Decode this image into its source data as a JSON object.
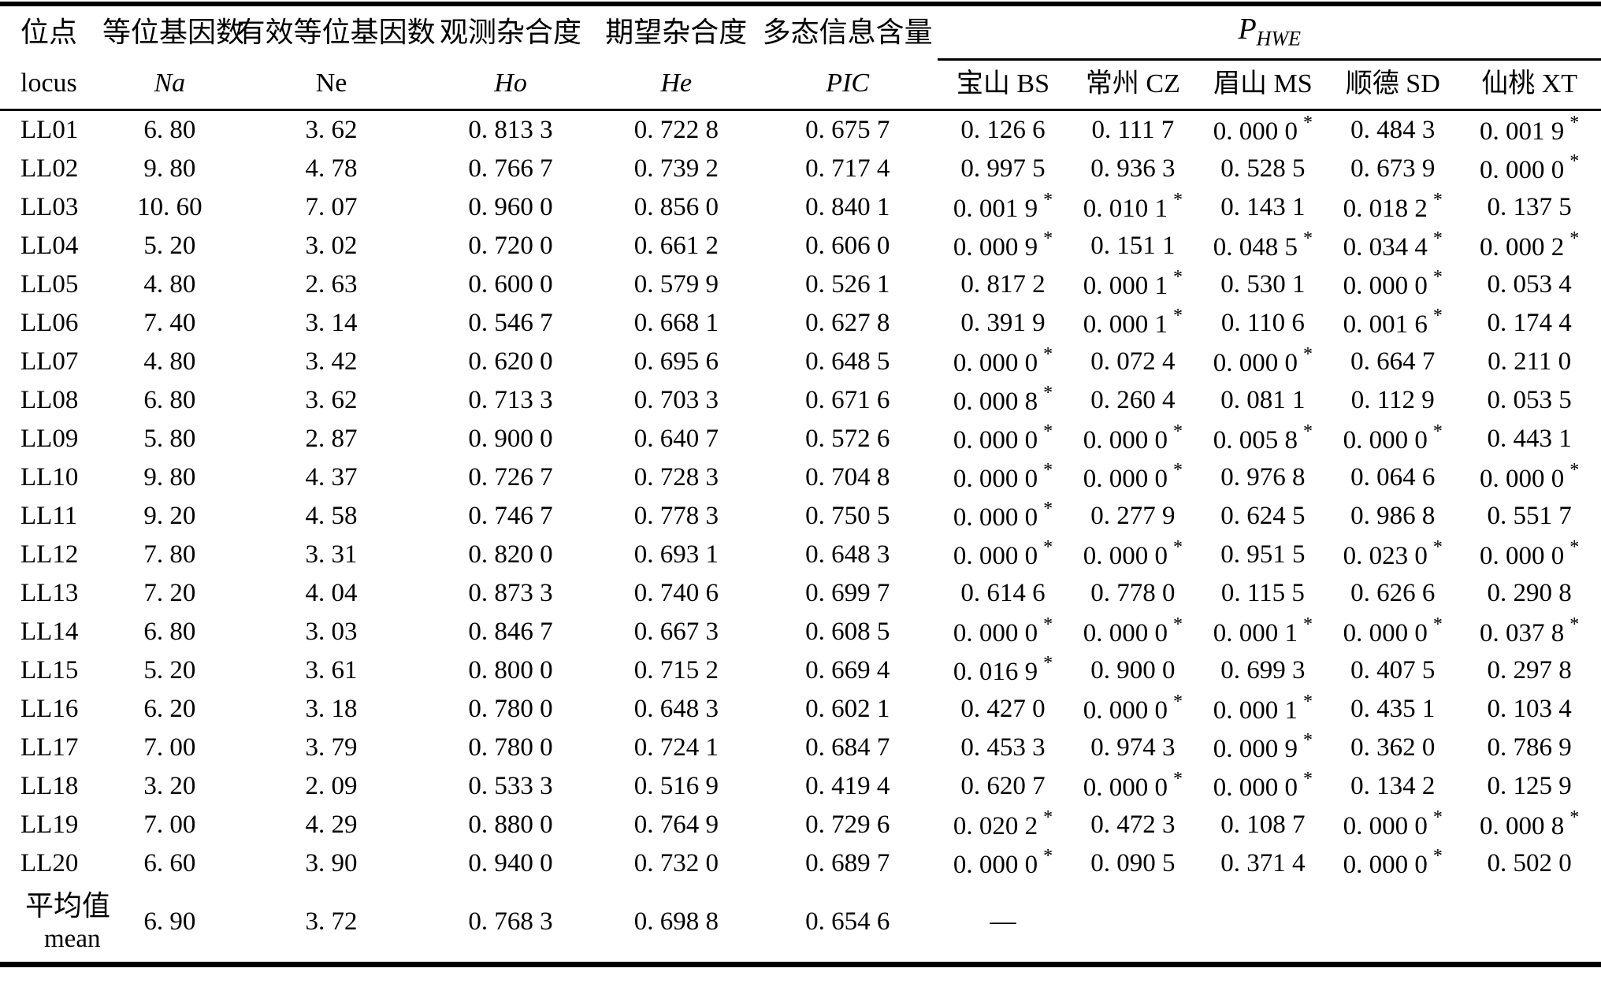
{
  "table": {
    "header": {
      "locus_zh": "位点",
      "locus_en": "locus",
      "na_zh": "等位基因数",
      "na_en": "Na",
      "ne_zh": "有效等位基因数",
      "ne_en": "Ne",
      "ho_zh": "观测杂合度",
      "ho_en": "Ho",
      "he_zh": "期望杂合度",
      "he_en": "He",
      "pic_zh": "多态信息含量",
      "pic_en": "PIC",
      "phwe_main": "P",
      "phwe_sub": "HWE",
      "pops": [
        "宝山 BS",
        "常州 CZ",
        "眉山 MS",
        "顺德 SD",
        "仙桃 XT"
      ]
    },
    "rows": [
      {
        "locus": "LL01",
        "na": "6. 80",
        "ne": "3. 62",
        "ho": "0. 813 3",
        "he": "0. 722 8",
        "pic": "0. 675 7",
        "p": [
          "0. 126 6",
          "0. 111 7",
          "0. 000 0*",
          "0. 484 3",
          "0. 001 9*"
        ]
      },
      {
        "locus": "LL02",
        "na": "9. 80",
        "ne": "4. 78",
        "ho": "0. 766 7",
        "he": "0. 739 2",
        "pic": "0. 717 4",
        "p": [
          "0. 997 5",
          "0. 936 3",
          "0. 528 5",
          "0. 673 9",
          "0. 000 0*"
        ]
      },
      {
        "locus": "LL03",
        "na": "10. 60",
        "ne": "7. 07",
        "ho": "0. 960 0",
        "he": "0. 856 0",
        "pic": "0. 840 1",
        "p": [
          "0. 001 9*",
          "0. 010 1*",
          "0. 143 1",
          "0. 018 2*",
          "0. 137 5"
        ]
      },
      {
        "locus": "LL04",
        "na": "5. 20",
        "ne": "3. 02",
        "ho": "0. 720 0",
        "he": "0. 661 2",
        "pic": "0. 606 0",
        "p": [
          "0. 000 9*",
          "0. 151 1",
          "0. 048 5*",
          "0. 034 4*",
          "0. 000 2*"
        ]
      },
      {
        "locus": "LL05",
        "na": "4. 80",
        "ne": "2. 63",
        "ho": "0. 600 0",
        "he": "0. 579 9",
        "pic": "0. 526 1",
        "p": [
          "0. 817 2",
          "0. 000 1*",
          "0. 530 1",
          "0. 000 0*",
          "0. 053 4"
        ]
      },
      {
        "locus": "LL06",
        "na": "7. 40",
        "ne": "3. 14",
        "ho": "0. 546 7",
        "he": "0. 668 1",
        "pic": "0. 627 8",
        "p": [
          "0. 391 9",
          "0. 000 1*",
          "0. 110 6",
          "0. 001 6*",
          "0. 174 4"
        ]
      },
      {
        "locus": "LL07",
        "na": "4. 80",
        "ne": "3. 42",
        "ho": "0. 620 0",
        "he": "0. 695 6",
        "pic": "0. 648 5",
        "p": [
          "0. 000 0*",
          "0. 072 4",
          "0. 000 0*",
          "0. 664 7",
          "0. 211 0"
        ]
      },
      {
        "locus": "LL08",
        "na": "6. 80",
        "ne": "3. 62",
        "ho": "0. 713 3",
        "he": "0. 703 3",
        "pic": "0. 671 6",
        "p": [
          "0. 000 8*",
          "0. 260 4",
          "0. 081 1",
          "0. 112 9",
          "0. 053 5"
        ]
      },
      {
        "locus": "LL09",
        "na": "5. 80",
        "ne": "2. 87",
        "ho": "0. 900 0",
        "he": "0. 640 7",
        "pic": "0. 572 6",
        "p": [
          "0. 000 0*",
          "0. 000 0*",
          "0. 005 8*",
          "0. 000 0*",
          "0. 443 1"
        ]
      },
      {
        "locus": "LL10",
        "na": "9. 80",
        "ne": "4. 37",
        "ho": "0. 726 7",
        "he": "0. 728 3",
        "pic": "0. 704 8",
        "p": [
          "0. 000 0*",
          "0. 000 0*",
          "0. 976 8",
          "0. 064 6",
          "0. 000 0*"
        ]
      },
      {
        "locus": "LL11",
        "na": "9. 20",
        "ne": "4. 58",
        "ho": "0. 746 7",
        "he": "0. 778 3",
        "pic": "0. 750 5",
        "p": [
          "0. 000 0*",
          "0. 277 9",
          "0. 624 5",
          "0. 986 8",
          "0. 551 7"
        ]
      },
      {
        "locus": "LL12",
        "na": "7. 80",
        "ne": "3. 31",
        "ho": "0. 820 0",
        "he": "0. 693 1",
        "pic": "0. 648 3",
        "p": [
          "0. 000 0*",
          "0. 000 0*",
          "0. 951 5",
          "0. 023 0*",
          "0. 000 0*"
        ]
      },
      {
        "locus": "LL13",
        "na": "7. 20",
        "ne": "4. 04",
        "ho": "0. 873 3",
        "he": "0. 740 6",
        "pic": "0. 699 7",
        "p": [
          "0. 614 6",
          "0. 778 0",
          "0. 115 5",
          "0. 626 6",
          "0. 290 8"
        ]
      },
      {
        "locus": "LL14",
        "na": "6. 80",
        "ne": "3. 03",
        "ho": "0. 846 7",
        "he": "0. 667 3",
        "pic": "0. 608 5",
        "p": [
          "0. 000 0*",
          "0. 000 0*",
          "0. 000 1*",
          "0. 000 0*",
          "0. 037 8*"
        ]
      },
      {
        "locus": "LL15",
        "na": "5. 20",
        "ne": "3. 61",
        "ho": "0. 800 0",
        "he": "0. 715 2",
        "pic": "0. 669 4",
        "p": [
          "0. 016 9*",
          "0. 900 0",
          "0. 699 3",
          "0. 407 5",
          "0. 297 8"
        ]
      },
      {
        "locus": "LL16",
        "na": "6. 20",
        "ne": "3. 18",
        "ho": "0. 780 0",
        "he": "0. 648 3",
        "pic": "0. 602 1",
        "p": [
          "0. 427 0",
          "0. 000 0*",
          "0. 000 1*",
          "0. 435 1",
          "0. 103 4"
        ]
      },
      {
        "locus": "LL17",
        "na": "7. 00",
        "ne": "3. 79",
        "ho": "0. 780 0",
        "he": "0. 724 1",
        "pic": "0. 684 7",
        "p": [
          "0. 453 3",
          "0. 974 3",
          "0. 000 9*",
          "0. 362 0",
          "0. 786 9"
        ]
      },
      {
        "locus": "LL18",
        "na": "3. 20",
        "ne": "2. 09",
        "ho": "0. 533 3",
        "he": "0. 516 9",
        "pic": "0. 419 4",
        "p": [
          "0. 620 7",
          "0. 000 0*",
          "0. 000 0*",
          "0. 134 2",
          "0. 125 9"
        ]
      },
      {
        "locus": "LL19",
        "na": "7. 00",
        "ne": "4. 29",
        "ho": "0. 880 0",
        "he": "0. 764 9",
        "pic": "0. 729 6",
        "p": [
          "0. 020 2*",
          "0. 472 3",
          "0. 108 7",
          "0. 000 0*",
          "0. 000 8*"
        ]
      },
      {
        "locus": "LL20",
        "na": "6. 60",
        "ne": "3. 90",
        "ho": "0. 940 0",
        "he": "0. 732 0",
        "pic": "0. 689 7",
        "p": [
          "0. 000 0*",
          "0. 090 5",
          "0. 371 4",
          "0. 000 0*",
          "0. 502 0"
        ]
      }
    ],
    "mean_row": {
      "label_zh": "平均值",
      "label_en": "mean",
      "na": "6. 90",
      "ne": "3. 72",
      "ho": "0. 768 3",
      "he": "0. 698 8",
      "pic": "0. 654 6",
      "p_bs": "—"
    }
  }
}
